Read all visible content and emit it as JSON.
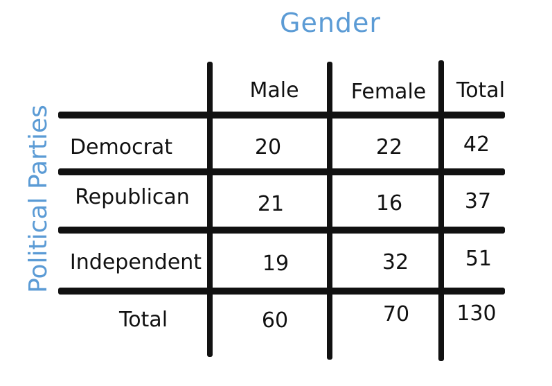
{
  "table": {
    "column_title": "Gender",
    "row_title": "Political Parties",
    "columns": [
      "Male",
      "Female",
      "Total"
    ],
    "rows": [
      {
        "label": "Democrat",
        "values": [
          "20",
          "22",
          "42"
        ]
      },
      {
        "label": "Republican",
        "values": [
          "21",
          "16",
          "37"
        ]
      },
      {
        "label": "Independent",
        "values": [
          "19",
          "32",
          "51"
        ]
      },
      {
        "label": "Total",
        "values": [
          "60",
          "70",
          "130"
        ]
      }
    ]
  },
  "colors": {
    "title_color": "#5b9bd5",
    "ink": "#111111"
  }
}
